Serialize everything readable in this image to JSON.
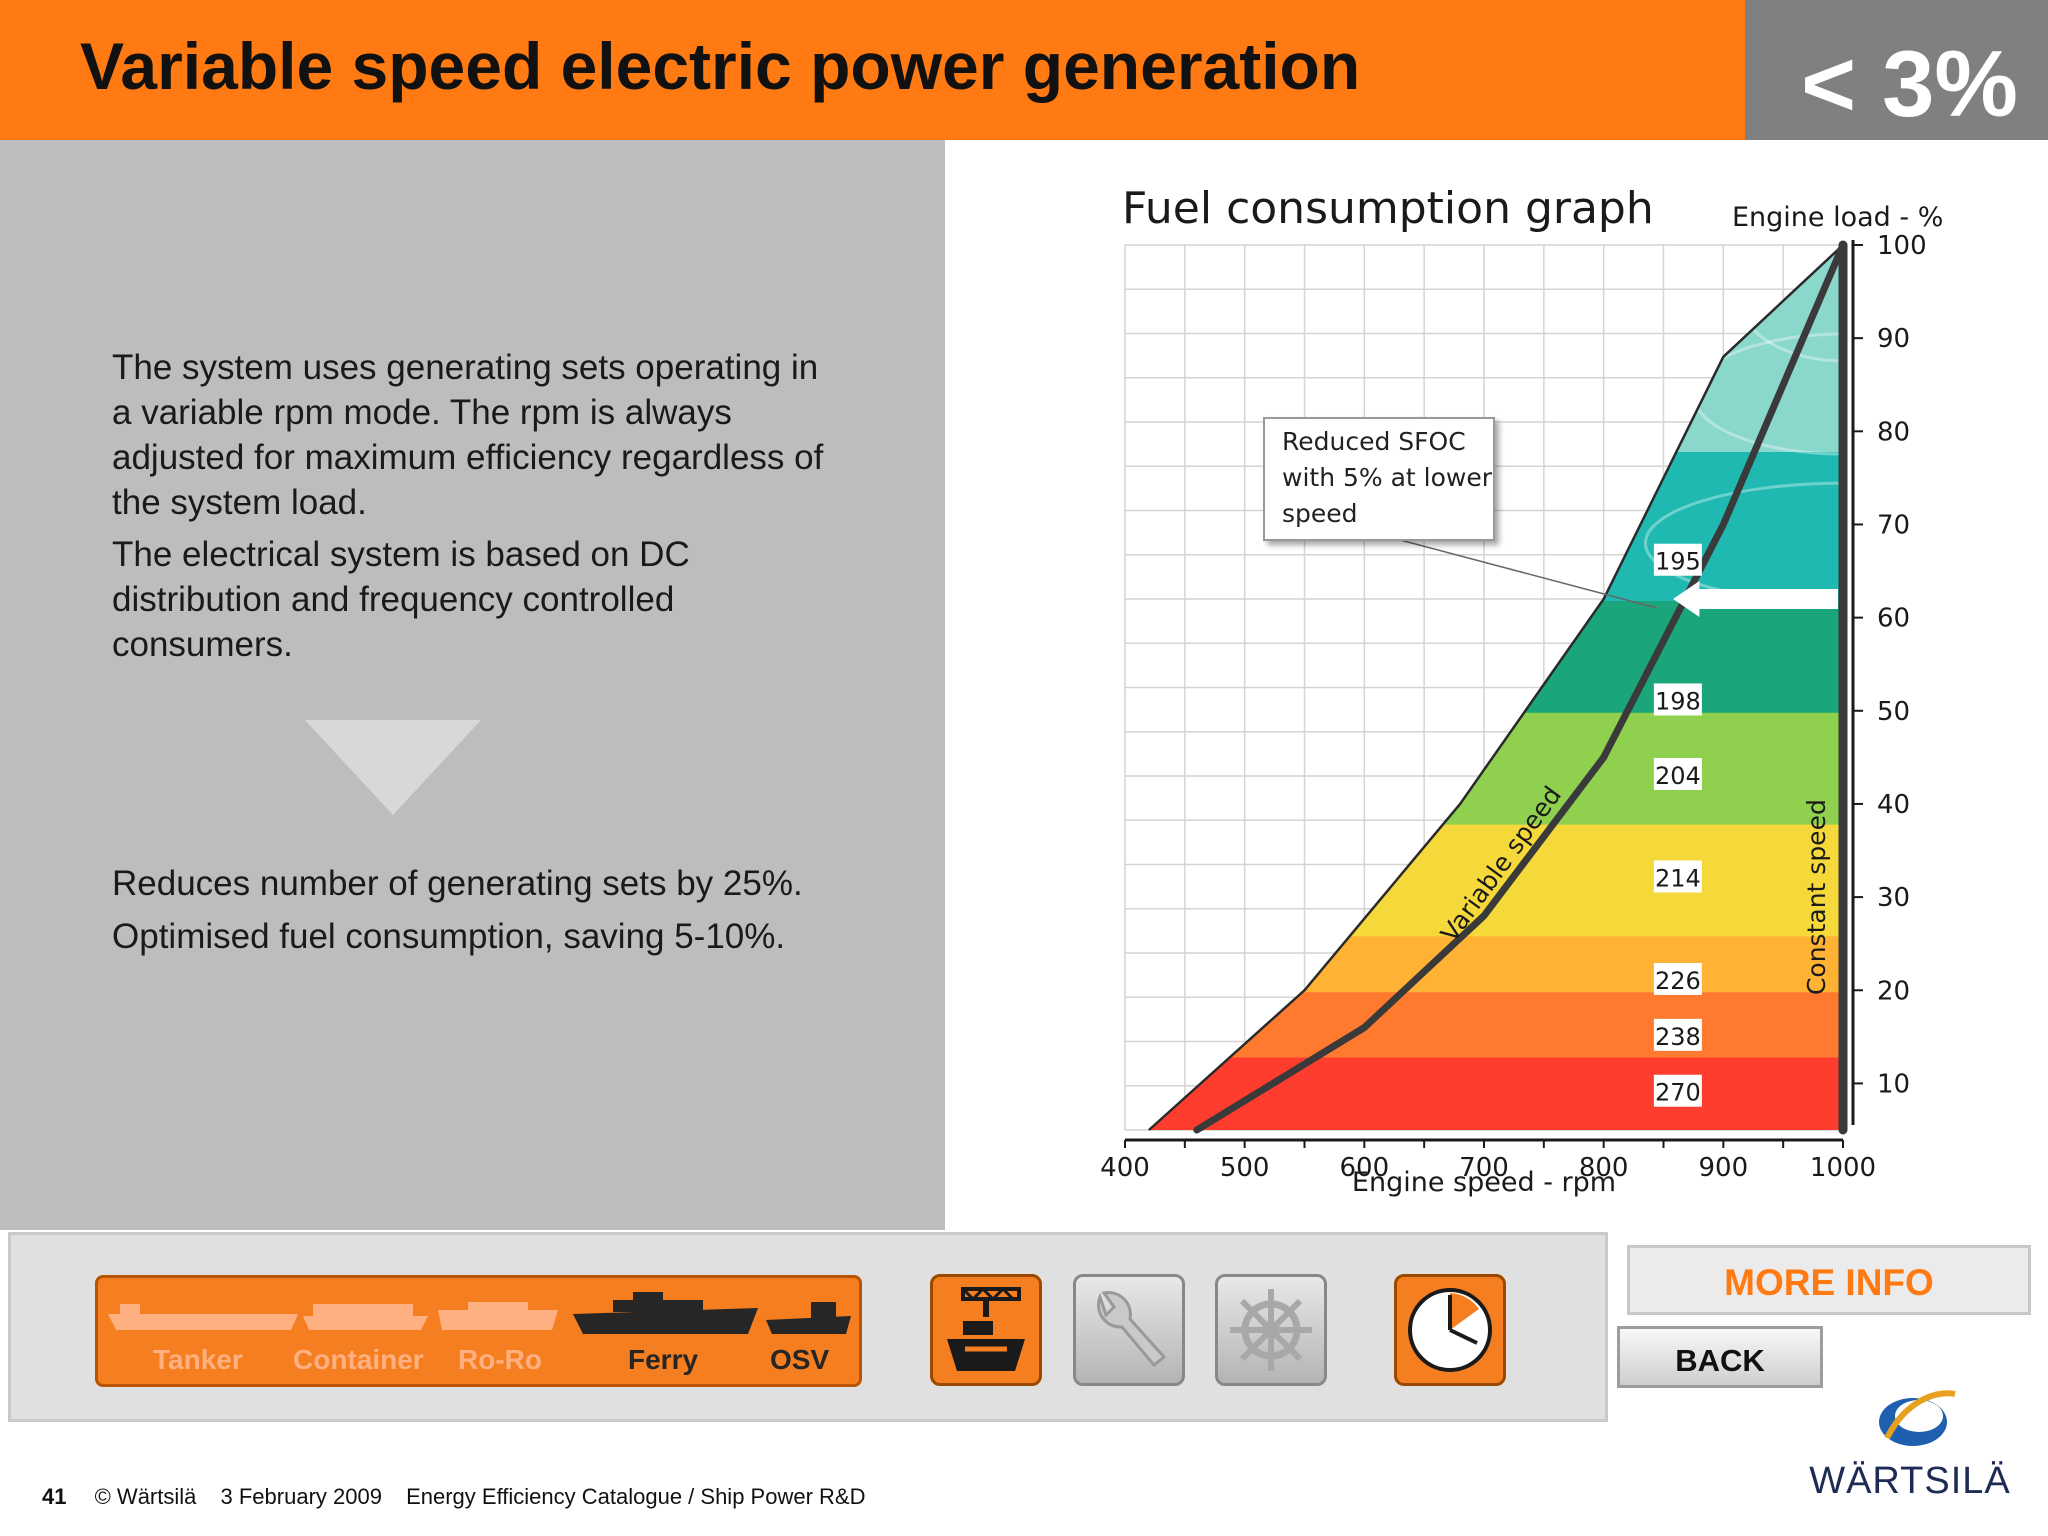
{
  "header": {
    "title": "Variable speed electric power generation",
    "badge": "< 3%"
  },
  "text": {
    "paragraph1": "The system uses generating sets operating in a variable rpm mode. The rpm is always adjusted for maximum efficiency regardless of the system load.",
    "paragraph2": "The electrical system is based on DC distribution and frequency controlled consumers.",
    "benefit1": "Reduces number of generating sets by 25%.",
    "benefit2": "Optimised fuel consumption, saving 5-10%."
  },
  "chart_data": {
    "type": "heatmap",
    "title": "Fuel consumption graph",
    "xlabel": "Engine speed - rpm",
    "ylabel": "Engine load - %",
    "x_ticks": [
      "400",
      "500",
      "600",
      "700",
      "800",
      "900",
      "1000"
    ],
    "y_ticks": [
      "100",
      "90",
      "80",
      "70",
      "60",
      "50",
      "40",
      "30",
      "20",
      "10"
    ],
    "xlim": [
      400,
      1000
    ],
    "ylim": [
      5,
      100
    ],
    "sfoc_zone_labels": [
      "195",
      "198",
      "204",
      "214",
      "226",
      "238",
      "270"
    ],
    "annotation": "Reduced SFOC with 5% at lower speed",
    "series": [
      {
        "name": "Variable speed",
        "x": [
          460,
          600,
          700,
          800,
          900,
          1000
        ],
        "y": [
          5,
          16,
          28,
          45,
          70,
          100
        ]
      },
      {
        "name": "Constant speed",
        "x": [
          1000,
          1000
        ],
        "y": [
          5,
          100
        ]
      }
    ],
    "envelope": {
      "x": [
        420,
        550,
        680,
        800,
        900,
        1000
      ],
      "y": [
        5,
        20,
        40,
        62,
        88,
        100
      ]
    },
    "zone_colors": [
      "#ff3d2e",
      "#ff7a2f",
      "#ffb233",
      "#f5d93a",
      "#8fd14f",
      "#1aa57a",
      "#1fb9b1",
      "#8ad7cc"
    ],
    "grid": true
  },
  "nav": {
    "ship_types": [
      {
        "label": "Tanker",
        "active": false
      },
      {
        "label": "Container",
        "active": false
      },
      {
        "label": "Ro-Ro",
        "active": false
      },
      {
        "label": "Ferry",
        "active": true
      },
      {
        "label": "OSV",
        "active": true
      }
    ],
    "buttons": [
      {
        "icon": "port-crane-ship-icon",
        "active": true
      },
      {
        "icon": "wrench-icon",
        "active": false
      },
      {
        "icon": "ship-wheel-icon",
        "active": false
      },
      {
        "icon": "clock-icon",
        "active": true
      }
    ],
    "more_info": "MORE INFO",
    "back": "BACK"
  },
  "footer": {
    "page": "41",
    "copyright": "© Wärtsilä",
    "date": "3 February 2009",
    "catalogue": "Energy Efficiency Catalogue / Ship Power R&D"
  },
  "logo": {
    "text": "WÄRTSILÄ"
  }
}
